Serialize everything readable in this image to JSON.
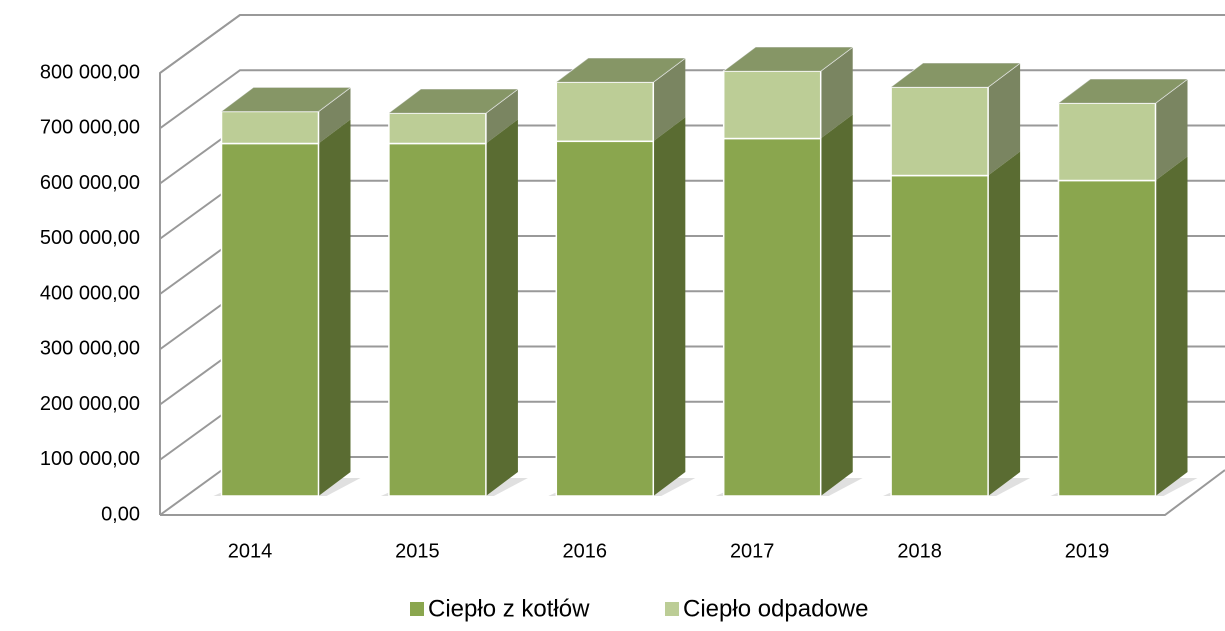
{
  "chart_data": {
    "type": "bar3d_stacked",
    "categories": [
      "2014",
      "2015",
      "2016",
      "2017",
      "2018",
      "2019"
    ],
    "series": [
      {
        "name": "Ciepło z kotłów",
        "color": "#8aa64e",
        "values": [
          638000,
          638000,
          642000,
          647000,
          580000,
          571000
        ]
      },
      {
        "name": "Ciepło odpadowe",
        "color": "#bccd96",
        "values": [
          58000,
          55000,
          107000,
          122000,
          160000,
          140000
        ]
      }
    ],
    "ylim": [
      0,
      800000
    ],
    "yticks": [
      {
        "value": 0,
        "label": "0,00"
      },
      {
        "value": 100000,
        "label": "100 000,00"
      },
      {
        "value": 200000,
        "label": "200 000,00"
      },
      {
        "value": 300000,
        "label": "300 000,00"
      },
      {
        "value": 400000,
        "label": "400 000,00"
      },
      {
        "value": 500000,
        "label": "500 000,00"
      },
      {
        "value": 600000,
        "label": "600 000,00"
      },
      {
        "value": 700000,
        "label": "700 000,00"
      },
      {
        "value": 800000,
        "label": "800 000,00"
      }
    ],
    "grid": true,
    "legend": "bottom"
  }
}
